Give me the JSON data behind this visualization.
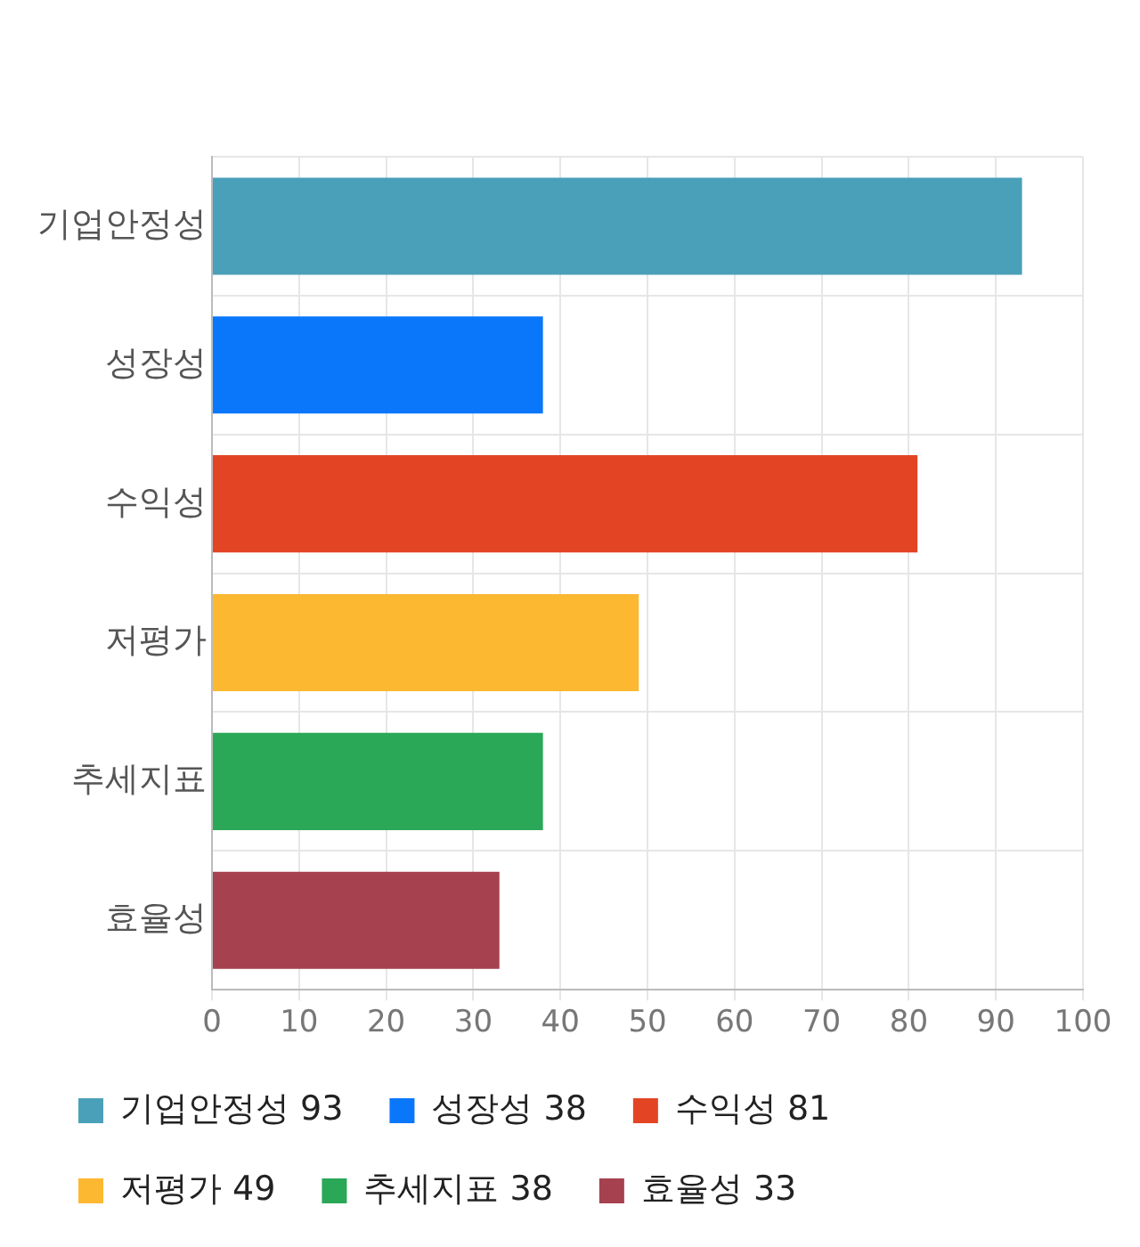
{
  "chart_data": {
    "type": "bar",
    "orientation": "horizontal",
    "stacked": true,
    "categories": [
      "기업안정성",
      "성장성",
      "수익성",
      "저평가",
      "추세지표",
      "효율성"
    ],
    "series": [
      {
        "name": "기업안정성 93",
        "color": "#4aa0b9",
        "values": [
          93,
          null,
          null,
          null,
          null,
          null
        ]
      },
      {
        "name": "성장성 38",
        "color": "#0a77fb",
        "values": [
          null,
          38,
          null,
          null,
          null,
          null
        ]
      },
      {
        "name": "수익성 81",
        "color": "#e34424",
        "values": [
          null,
          null,
          81,
          null,
          null,
          null
        ]
      },
      {
        "name": "저평가 49",
        "color": "#fdb832",
        "values": [
          null,
          null,
          null,
          49,
          null,
          null
        ]
      },
      {
        "name": "추세지표 38",
        "color": "#2aa857",
        "values": [
          null,
          null,
          null,
          null,
          38,
          null
        ]
      },
      {
        "name": "효율성 33",
        "color": "#a6414f",
        "values": [
          null,
          null,
          null,
          null,
          null,
          33
        ]
      }
    ],
    "xlim": [
      0,
      100
    ],
    "xticks": [
      0,
      10,
      20,
      30,
      40,
      50,
      60,
      70,
      80,
      90,
      100
    ],
    "grid": true,
    "legend": "bottom"
  }
}
